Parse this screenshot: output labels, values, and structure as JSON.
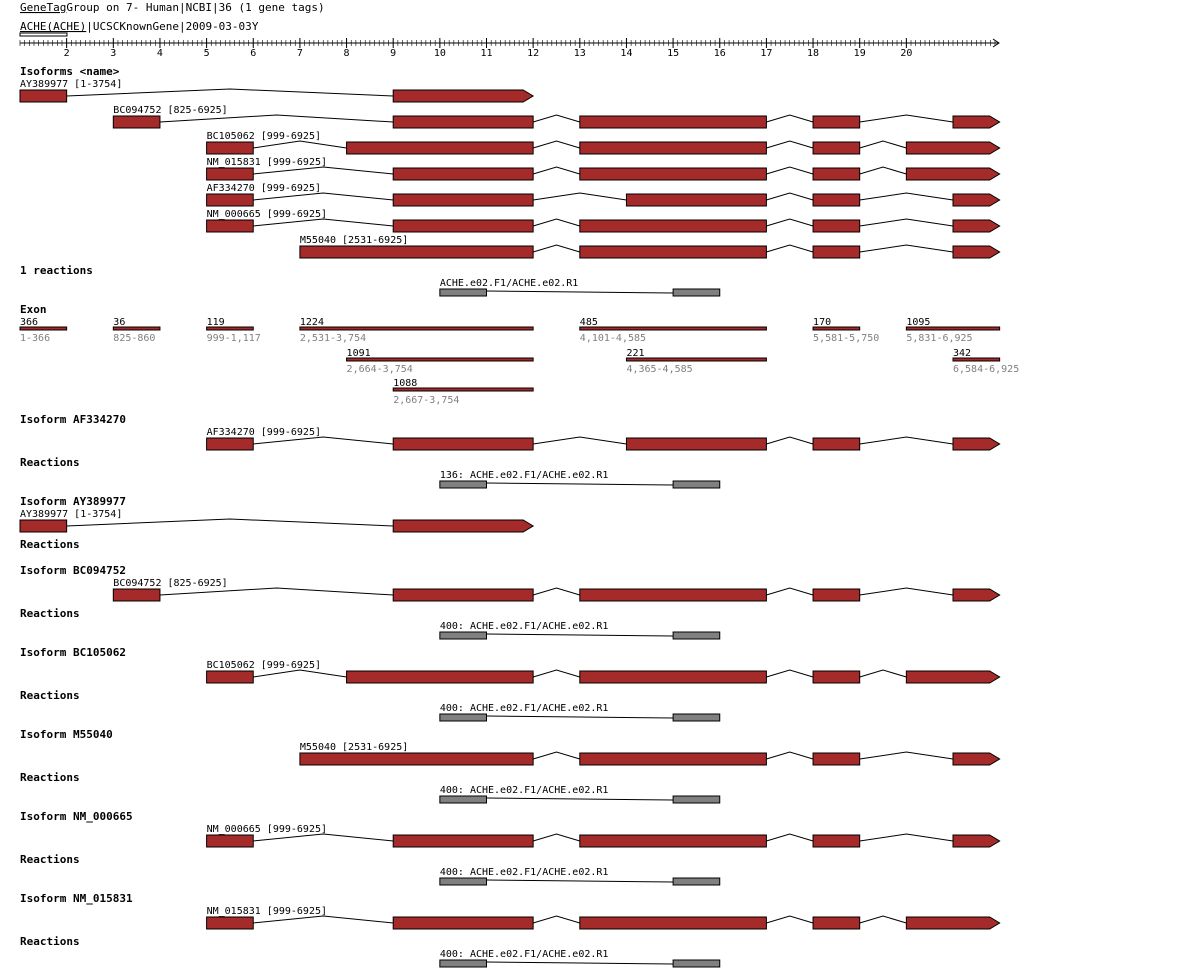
{
  "header": {
    "title_link": "GeneTag",
    "title_rest": "Group on 7- Human|NCBI|36 (1 gene tags)",
    "gene_link": "ACHE(ACHE)",
    "gene_rest": "|UCSCKnownGene|2009-03-03",
    "cursor_glyph": "Y"
  },
  "axis": {
    "ticks": [
      "2",
      "3",
      "4",
      "5",
      "6",
      "7",
      "8",
      "9",
      "10",
      "11",
      "12",
      "13",
      "14",
      "15",
      "16",
      "17",
      "18",
      "19",
      "20"
    ]
  },
  "colors": {
    "exon": "#a52a2a",
    "reaction": "#808080",
    "secondary_text": "#808080"
  },
  "isoforms_overview": {
    "heading": "Isoforms <name>",
    "items": [
      {
        "label": "AY389977 [1-3754]",
        "exons": [
          [
            1,
            2
          ],
          [
            9,
            12
          ]
        ],
        "tip": true
      },
      {
        "label": "BC094752 [825-6925]",
        "exons": [
          [
            3,
            4
          ],
          [
            9,
            12
          ],
          [
            13,
            17
          ],
          [
            18,
            19
          ],
          [
            21,
            22
          ]
        ],
        "tip": true
      },
      {
        "label": "BC105062 [999-6925]",
        "exons": [
          [
            5,
            6
          ],
          [
            8,
            12
          ],
          [
            13,
            17
          ],
          [
            18,
            19
          ],
          [
            20,
            22
          ]
        ],
        "tip": true
      },
      {
        "label": "NM_015831 [999-6925]",
        "exons": [
          [
            5,
            6
          ],
          [
            9,
            12
          ],
          [
            13,
            17
          ],
          [
            18,
            19
          ],
          [
            20,
            22
          ]
        ],
        "tip": true
      },
      {
        "label": "AF334270 [999-6925]",
        "exons": [
          [
            5,
            6
          ],
          [
            9,
            12
          ],
          [
            14,
            17
          ],
          [
            18,
            19
          ],
          [
            21,
            22
          ]
        ],
        "tip": true
      },
      {
        "label": "NM_000665 [999-6925]",
        "exons": [
          [
            5,
            6
          ],
          [
            9,
            12
          ],
          [
            13,
            17
          ],
          [
            18,
            19
          ],
          [
            21,
            22
          ]
        ],
        "tip": true
      },
      {
        "label": "M55040 [2531-6925]",
        "exons": [
          [
            7,
            12
          ],
          [
            13,
            17
          ],
          [
            18,
            19
          ],
          [
            21,
            22
          ]
        ],
        "tip": true
      }
    ]
  },
  "reactions_overview": {
    "heading": "1 reactions",
    "label": "ACHE.e02.F1/ACHE.e02.R1",
    "boxes": [
      [
        10,
        11
      ],
      [
        15,
        16
      ]
    ]
  },
  "exon_section": {
    "heading": "Exon",
    "items": [
      {
        "length": "366",
        "range": "1-366",
        "span": [
          1,
          2
        ],
        "row": 0
      },
      {
        "length": "36",
        "range": "825-860",
        "span": [
          3,
          4
        ],
        "row": 0
      },
      {
        "length": "119",
        "range": "999-1,117",
        "span": [
          5,
          6
        ],
        "row": 0
      },
      {
        "length": "1224",
        "range": "2,531-3,754",
        "span": [
          7,
          12
        ],
        "row": 0
      },
      {
        "length": "485",
        "range": "4,101-4,585",
        "span": [
          13,
          17
        ],
        "row": 0
      },
      {
        "length": "170",
        "range": "5,581-5,750",
        "span": [
          18,
          19
        ],
        "row": 0
      },
      {
        "length": "1095",
        "range": "5,831-6,925",
        "span": [
          20,
          22
        ],
        "row": 0
      },
      {
        "length": "1091",
        "range": "2,664-3,754",
        "span": [
          8,
          12
        ],
        "row": 1
      },
      {
        "length": "221",
        "range": "4,365-4,585",
        "span": [
          14,
          17
        ],
        "row": 1
      },
      {
        "length": "342",
        "range": "6,584-6,925",
        "span": [
          21,
          22
        ],
        "row": 1
      },
      {
        "length": "1088",
        "range": "2,667-3,754",
        "span": [
          9,
          12
        ],
        "row": 2
      }
    ]
  },
  "isoform_sections": [
    {
      "heading": "Isoform AF334270",
      "iso_label": "AF334270 [999-6925]",
      "exons": [
        [
          5,
          6
        ],
        [
          9,
          12
        ],
        [
          14,
          17
        ],
        [
          18,
          19
        ],
        [
          21,
          22
        ]
      ],
      "reactions_heading": "Reactions",
      "reaction_label": "136: ACHE.e02.F1/ACHE.e02.R1",
      "has_reaction": true
    },
    {
      "heading": "Isoform AY389977",
      "iso_label": "AY389977 [1-3754]",
      "exons": [
        [
          1,
          2
        ],
        [
          9,
          12
        ]
      ],
      "reactions_heading": "Reactions",
      "reaction_label": "",
      "has_reaction": false
    },
    {
      "heading": "Isoform BC094752",
      "iso_label": "BC094752 [825-6925]",
      "exons": [
        [
          3,
          4
        ],
        [
          9,
          12
        ],
        [
          13,
          17
        ],
        [
          18,
          19
        ],
        [
          21,
          22
        ]
      ],
      "reactions_heading": "Reactions",
      "reaction_label": "400: ACHE.e02.F1/ACHE.e02.R1",
      "has_reaction": true
    },
    {
      "heading": "Isoform BC105062",
      "iso_label": "BC105062 [999-6925]",
      "exons": [
        [
          5,
          6
        ],
        [
          8,
          12
        ],
        [
          13,
          17
        ],
        [
          18,
          19
        ],
        [
          20,
          22
        ]
      ],
      "reactions_heading": "Reactions",
      "reaction_label": "400: ACHE.e02.F1/ACHE.e02.R1",
      "has_reaction": true
    },
    {
      "heading": "Isoform M55040",
      "iso_label": "M55040 [2531-6925]",
      "exons": [
        [
          7,
          12
        ],
        [
          13,
          17
        ],
        [
          18,
          19
        ],
        [
          21,
          22
        ]
      ],
      "reactions_heading": "Reactions",
      "reaction_label": "400: ACHE.e02.F1/ACHE.e02.R1",
      "has_reaction": true
    },
    {
      "heading": "Isoform NM_000665",
      "iso_label": "NM_000665 [999-6925]",
      "exons": [
        [
          5,
          6
        ],
        [
          9,
          12
        ],
        [
          13,
          17
        ],
        [
          18,
          19
        ],
        [
          21,
          22
        ]
      ],
      "reactions_heading": "Reactions",
      "reaction_label": "400: ACHE.e02.F1/ACHE.e02.R1",
      "has_reaction": true
    },
    {
      "heading": "Isoform NM_015831",
      "iso_label": "NM_015831 [999-6925]",
      "exons": [
        [
          5,
          6
        ],
        [
          9,
          12
        ],
        [
          13,
          17
        ],
        [
          18,
          19
        ],
        [
          20,
          22
        ]
      ],
      "reactions_heading": "Reactions",
      "reaction_label": "400: ACHE.e02.F1/ACHE.e02.R1",
      "has_reaction": true
    }
  ]
}
